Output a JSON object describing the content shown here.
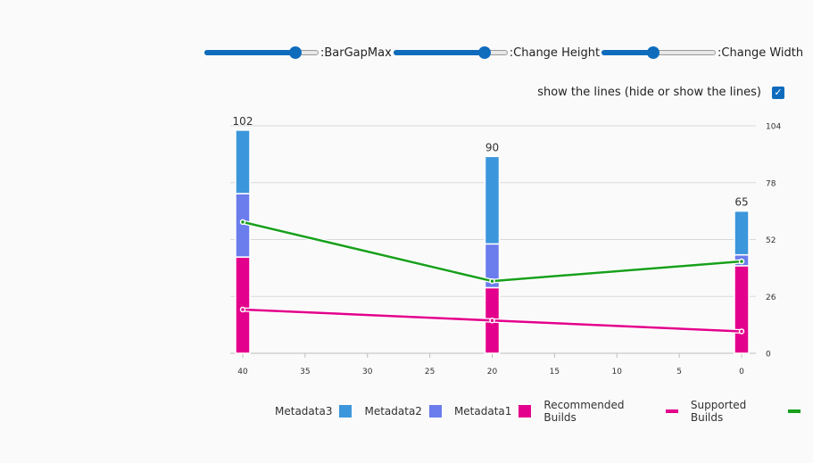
{
  "controls": {
    "sliders": [
      {
        "label": ":BarGapMax",
        "value": 0.8
      },
      {
        "label": ":Change Height",
        "value": 0.8
      },
      {
        "label": ":Change Width",
        "value": 0.45
      }
    ],
    "checkbox": {
      "label": "show the lines (hide or show the lines)",
      "checked": true,
      "mark": "✓"
    }
  },
  "colors": {
    "Metadata3": "#3c96db",
    "Metadata2": "#6b7cec",
    "Metadata1": "#e3008c",
    "Recommended Builds": "#e3008c",
    "Supported Builds": "#18a01c",
    "grid": "#d9d9d9",
    "axis": "#bdbdbd"
  },
  "chart_data": {
    "type": "bar",
    "stacked": true,
    "x_ticks": [
      "40",
      "35",
      "30",
      "25",
      "20",
      "15",
      "10",
      "5",
      "0"
    ],
    "y_ticks": [
      "0",
      "26",
      "52",
      "78",
      "104"
    ],
    "ylim": [
      0,
      104
    ],
    "xlim": [
      40,
      0
    ],
    "bars": [
      {
        "x": 40,
        "total_label": "102",
        "segments": [
          {
            "name": "Metadata1",
            "value": 44
          },
          {
            "name": "Metadata2",
            "value": 29
          },
          {
            "name": "Metadata3",
            "value": 29
          }
        ]
      },
      {
        "x": 20,
        "total_label": "90",
        "segments": [
          {
            "name": "Metadata1",
            "value": 30
          },
          {
            "name": "Metadata2",
            "value": 20
          },
          {
            "name": "Metadata3",
            "value": 40
          }
        ]
      },
      {
        "x": 0,
        "total_label": "65",
        "segments": [
          {
            "name": "Metadata1",
            "value": 40
          },
          {
            "name": "Metadata2",
            "value": 5
          },
          {
            "name": "Metadata3",
            "value": 20
          }
        ]
      }
    ],
    "lines": [
      {
        "name": "Supported Builds",
        "points": [
          {
            "x": 40,
            "y": 60
          },
          {
            "x": 20,
            "y": 33
          },
          {
            "x": 0,
            "y": 42
          }
        ]
      },
      {
        "name": "Recommended Builds",
        "points": [
          {
            "x": 40,
            "y": 20
          },
          {
            "x": 20,
            "y": 15
          },
          {
            "x": 0,
            "y": 10
          }
        ]
      }
    ],
    "legend": [
      "Metadata3",
      "Metadata2",
      "Metadata1",
      "Recommended Builds",
      "Supported Builds"
    ],
    "legend_position": "bottom"
  }
}
